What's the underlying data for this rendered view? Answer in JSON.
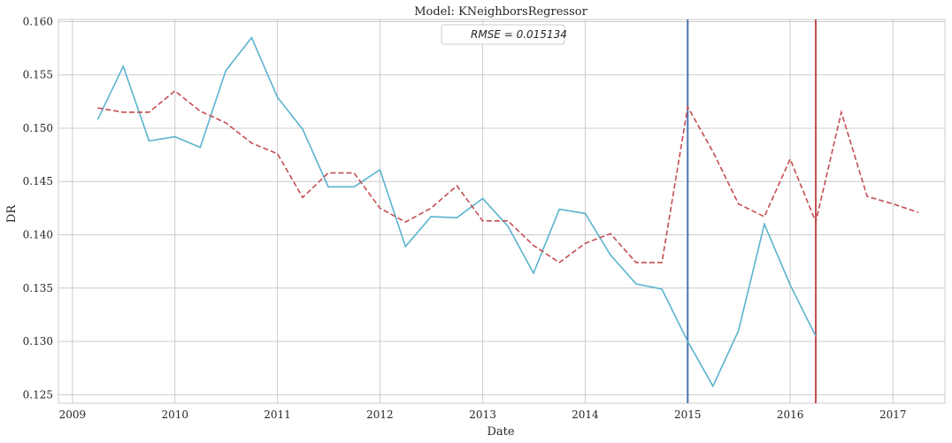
{
  "chart_data": {
    "type": "line",
    "title": "Model: KNeighborsRegressor",
    "xlabel": "Date",
    "ylabel": "DR",
    "x_ticks": [
      "2009",
      "2010",
      "2011",
      "2012",
      "2013",
      "2014",
      "2015",
      "2016",
      "2017"
    ],
    "y_ticks": [
      "0.125",
      "0.130",
      "0.135",
      "0.140",
      "0.145",
      "0.150",
      "0.155",
      "0.160"
    ],
    "xlim": [
      "2008-11-12",
      "2017-07-05"
    ],
    "ylim": [
      0.1242,
      0.1602
    ],
    "grid": true,
    "legend_text": "RMSE = 0.015134",
    "series": [
      {
        "color": "#5ab3cf",
        "style": "solid",
        "points": [
          [
            "2009-04-01",
            0.1508
          ],
          [
            "2009-07-01",
            0.1558
          ],
          [
            "2009-10-01",
            0.1488
          ],
          [
            "2010-01-01",
            0.1492
          ],
          [
            "2010-04-01",
            0.1482
          ],
          [
            "2010-07-01",
            0.1554
          ],
          [
            "2010-10-01",
            0.1585
          ],
          [
            "2011-01-01",
            0.1529
          ],
          [
            "2011-04-01",
            0.1499
          ],
          [
            "2011-07-01",
            0.1445
          ],
          [
            "2011-10-01",
            0.1445
          ],
          [
            "2012-01-01",
            0.1461
          ],
          [
            "2012-04-01",
            0.1389
          ],
          [
            "2012-07-01",
            0.1417
          ],
          [
            "2012-10-01",
            0.1416
          ],
          [
            "2013-01-01",
            0.1434
          ],
          [
            "2013-04-01",
            0.1408
          ],
          [
            "2013-07-01",
            0.1364
          ],
          [
            "2013-10-01",
            0.1424
          ],
          [
            "2014-01-01",
            0.142
          ],
          [
            "2014-04-01",
            0.1381
          ],
          [
            "2014-07-01",
            0.1354
          ],
          [
            "2014-10-01",
            0.1349
          ],
          [
            "2015-01-01",
            0.13
          ],
          [
            "2015-04-01",
            0.1258
          ],
          [
            "2015-07-01",
            0.131
          ],
          [
            "2015-10-01",
            0.141
          ],
          [
            "2016-01-01",
            0.1353
          ],
          [
            "2016-04-01",
            0.1305
          ]
        ]
      },
      {
        "color": "#c44e52",
        "style": "dashed",
        "points": [
          [
            "2009-04-01",
            0.1519
          ],
          [
            "2009-07-01",
            0.1515
          ],
          [
            "2009-10-01",
            0.1515
          ],
          [
            "2010-01-01",
            0.1535
          ],
          [
            "2010-04-01",
            0.1516
          ],
          [
            "2010-07-01",
            0.1505
          ],
          [
            "2010-10-01",
            0.1486
          ],
          [
            "2011-01-01",
            0.1476
          ],
          [
            "2011-04-01",
            0.1435
          ],
          [
            "2011-07-01",
            0.1458
          ],
          [
            "2011-10-01",
            0.1458
          ],
          [
            "2012-01-01",
            0.1425
          ],
          [
            "2012-04-01",
            0.1412
          ],
          [
            "2012-07-01",
            0.1425
          ],
          [
            "2012-10-01",
            0.1446
          ],
          [
            "2013-01-01",
            0.1413
          ],
          [
            "2013-04-01",
            0.1413
          ],
          [
            "2013-07-01",
            0.139
          ],
          [
            "2013-10-01",
            0.1374
          ],
          [
            "2014-01-01",
            0.1392
          ],
          [
            "2014-04-01",
            0.1401
          ],
          [
            "2014-07-01",
            0.1374
          ],
          [
            "2014-10-01",
            0.1374
          ],
          [
            "2015-01-01",
            0.152
          ],
          [
            "2015-04-01",
            0.1478
          ],
          [
            "2015-07-01",
            0.1429
          ],
          [
            "2015-10-01",
            0.1417
          ],
          [
            "2016-01-01",
            0.1471
          ],
          [
            "2016-04-01",
            0.1412
          ],
          [
            "2016-07-01",
            0.1515
          ],
          [
            "2016-10-01",
            0.1436
          ],
          [
            "2017-01-01",
            0.1429
          ],
          [
            "2017-04-01",
            0.1421
          ]
        ]
      }
    ],
    "vertical_lines": [
      {
        "x": "2015-01-01",
        "color": "#4c72b0"
      },
      {
        "x": "2016-04-01",
        "color": "#c44e52"
      }
    ]
  }
}
